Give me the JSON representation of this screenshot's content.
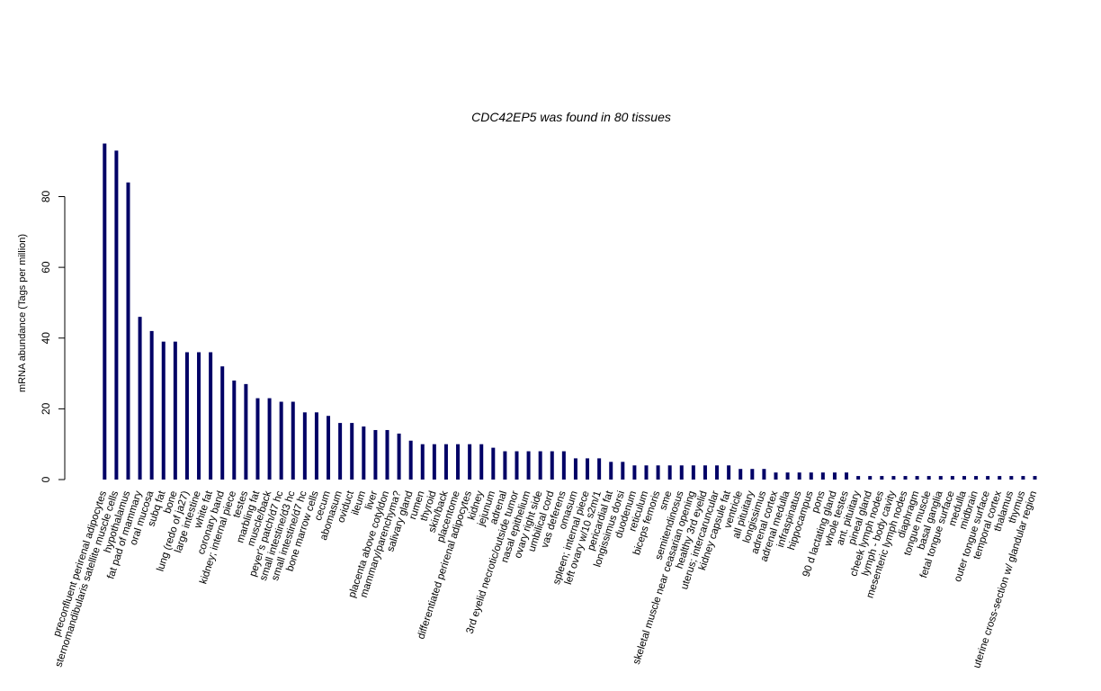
{
  "chart_data": {
    "type": "bar",
    "title": "CDC42EP5  was found in  80  tissues",
    "xlabel": "",
    "ylabel": "mRNA abundance (Tags per million)",
    "ylim": [
      0,
      95
    ],
    "yticks": [
      0,
      20,
      40,
      60,
      80
    ],
    "grid": false,
    "bar_color": "#000066",
    "categories": [
      "preconfluent perirenal adipocytes",
      "sternomandibularis satellite muscle cells",
      "hypothalamus",
      "fat pad of mammary",
      "oral mucosa",
      "subq fat",
      "bone",
      "lung (redo of ja27)",
      "large intestine",
      "white fat",
      "coronary band",
      "kidney; internal piece",
      "testes",
      "marbling fat",
      "muscle/back",
      "peyer's patch/d7 hc",
      "small intestine/d3 hc",
      "small intestine/d7 hc",
      "bone marrow cells",
      "cecum",
      "abomasum",
      "oviduct",
      "ileum",
      "liver",
      "placenta above cotyldon",
      "mammary/parenchyma?",
      "salivary gland",
      "rumen",
      "thyroid",
      "skin/back",
      "placentome",
      "differentiated perirenal adipocytes",
      "kidney",
      "jejunum",
      "adrenal",
      "3rd eyelid necrotic/outside tumor",
      "nasal epithelium",
      "ovary right side",
      "umbilical cord",
      "vas deferens",
      "omasum",
      "spleen; internal piece",
      "left ovary w/10 s2m/1",
      "pericardial fat",
      "longissimus dorsi",
      "duodenum",
      "reticulum",
      "biceps femoris",
      "sme",
      "semitendinosus",
      "skeletal muscle near ceasarian opening",
      "healthy 3rd eyelid",
      "uterus; intercaruncular",
      "kidney capsule fat",
      "ventricle",
      "all pituitary",
      "longissimus",
      "adrenal cortex",
      "adrenal medulla",
      "infraspinatus",
      "hippocampus",
      "pons",
      "90 d lactating gland",
      "whole testes",
      "ant. pituitary",
      "pineal gland",
      "cheek lymph nodes",
      "lymph - body cavity",
      "mesenteric lymph nodes",
      "diaphragm",
      "tongue muscle",
      "basal ganglia",
      "fetal tongue surface",
      "medulla",
      "midbrain",
      "outer tongue surface",
      "temporal cortex",
      "thalamus",
      "thymus",
      "uterine cross-section w/ glandular region"
    ],
    "values": [
      95,
      93,
      84,
      46,
      42,
      39,
      39,
      36,
      36,
      36,
      32,
      28,
      27,
      23,
      23,
      22,
      22,
      19,
      19,
      18,
      16,
      16,
      15,
      14,
      14,
      13,
      11,
      10,
      10,
      10,
      10,
      10,
      10,
      9,
      8,
      8,
      8,
      8,
      8,
      8,
      6,
      6,
      6,
      5,
      5,
      4,
      4,
      4,
      4,
      4,
      4,
      4,
      4,
      4,
      3,
      3,
      3,
      2,
      2,
      2,
      2,
      2,
      2,
      2,
      1,
      1,
      1,
      1,
      1,
      1,
      1,
      1,
      1,
      1,
      1,
      1,
      1,
      1,
      1,
      1
    ]
  }
}
